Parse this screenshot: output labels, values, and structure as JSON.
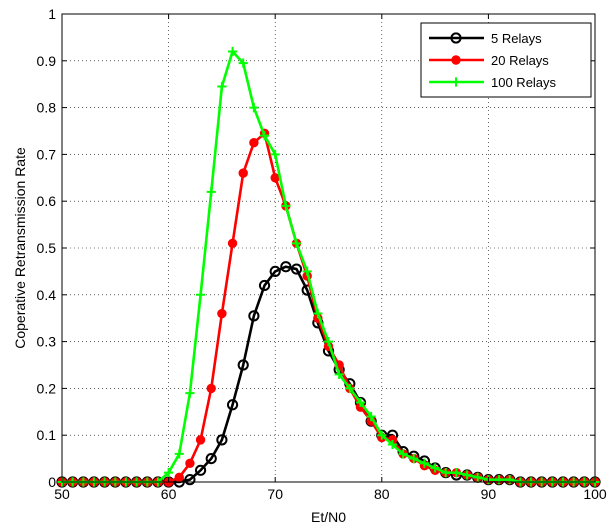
{
  "chart_data": {
    "type": "line",
    "xlabel": "Et/N0",
    "ylabel": "Coperative Retransmission Rate",
    "xlim": [
      50,
      100
    ],
    "ylim": [
      0,
      1
    ],
    "xticks": [
      50,
      60,
      70,
      80,
      90,
      100
    ],
    "yticks": [
      0,
      0.1,
      0.2,
      0.3,
      0.4,
      0.5,
      0.6,
      0.7,
      0.8,
      0.9,
      1
    ],
    "xtick_labels": [
      "50",
      "60",
      "70",
      "80",
      "90",
      "100"
    ],
    "ytick_labels": [
      "0",
      "0.1",
      "0.2",
      "0.3",
      "0.4",
      "0.5",
      "0.6",
      "0.7",
      "0.8",
      "0.9",
      "1"
    ],
    "grid": true,
    "legend_position": "top-right",
    "x": [
      50,
      51,
      52,
      53,
      54,
      55,
      56,
      57,
      58,
      59,
      60,
      61,
      62,
      63,
      64,
      65,
      66,
      67,
      68,
      69,
      70,
      71,
      72,
      73,
      74,
      75,
      76,
      77,
      78,
      79,
      80,
      81,
      82,
      83,
      84,
      85,
      86,
      87,
      88,
      89,
      90,
      91,
      92,
      93,
      94,
      95,
      96,
      97,
      98,
      99,
      100
    ],
    "series": [
      {
        "name": "5 Relays",
        "color": "#000000",
        "marker": "circle",
        "values": [
          0,
          0,
          0,
          0,
          0,
          0,
          0,
          0,
          0,
          0,
          0,
          0,
          0.005,
          0.025,
          0.05,
          0.09,
          0.165,
          0.25,
          0.355,
          0.42,
          0.45,
          0.46,
          0.455,
          0.41,
          0.34,
          0.28,
          0.24,
          0.21,
          0.17,
          0.13,
          0.1,
          0.1,
          0.065,
          0.055,
          0.045,
          0.03,
          0.02,
          0.015,
          0.015,
          0.01,
          0.005,
          0.005,
          0.005,
          0,
          0,
          0,
          0,
          0,
          0,
          0,
          0
        ]
      },
      {
        "name": "20 Relays",
        "color": "#ff0000",
        "marker": "filled-circle",
        "values": [
          0,
          0,
          0,
          0,
          0,
          0,
          0,
          0,
          0,
          0,
          0,
          0.01,
          0.04,
          0.09,
          0.2,
          0.36,
          0.51,
          0.66,
          0.725,
          0.745,
          0.65,
          0.59,
          0.51,
          0.44,
          0.35,
          0.29,
          0.25,
          0.2,
          0.16,
          0.13,
          0.095,
          0.09,
          0.06,
          0.05,
          0.035,
          0.025,
          0.02,
          0.02,
          0.015,
          0.01,
          0.005,
          0.005,
          0.005,
          0,
          0,
          0,
          0,
          0,
          0,
          0,
          0
        ]
      },
      {
        "name": "100 Relays",
        "color": "#00ff00",
        "marker": "plus",
        "values": [
          0,
          0,
          0,
          0,
          0,
          0,
          0,
          0,
          0,
          0,
          0.02,
          0.06,
          0.19,
          0.4,
          0.62,
          0.845,
          0.92,
          0.895,
          0.8,
          0.74,
          0.7,
          0.59,
          0.51,
          0.45,
          0.36,
          0.3,
          0.23,
          0.2,
          0.17,
          0.14,
          0.1,
          0.08,
          0.06,
          0.05,
          0.04,
          0.03,
          0.02,
          0.02,
          0.015,
          0.01,
          0.005,
          0.005,
          0.005,
          0,
          0,
          0,
          0,
          0,
          0,
          0,
          0
        ]
      }
    ]
  }
}
